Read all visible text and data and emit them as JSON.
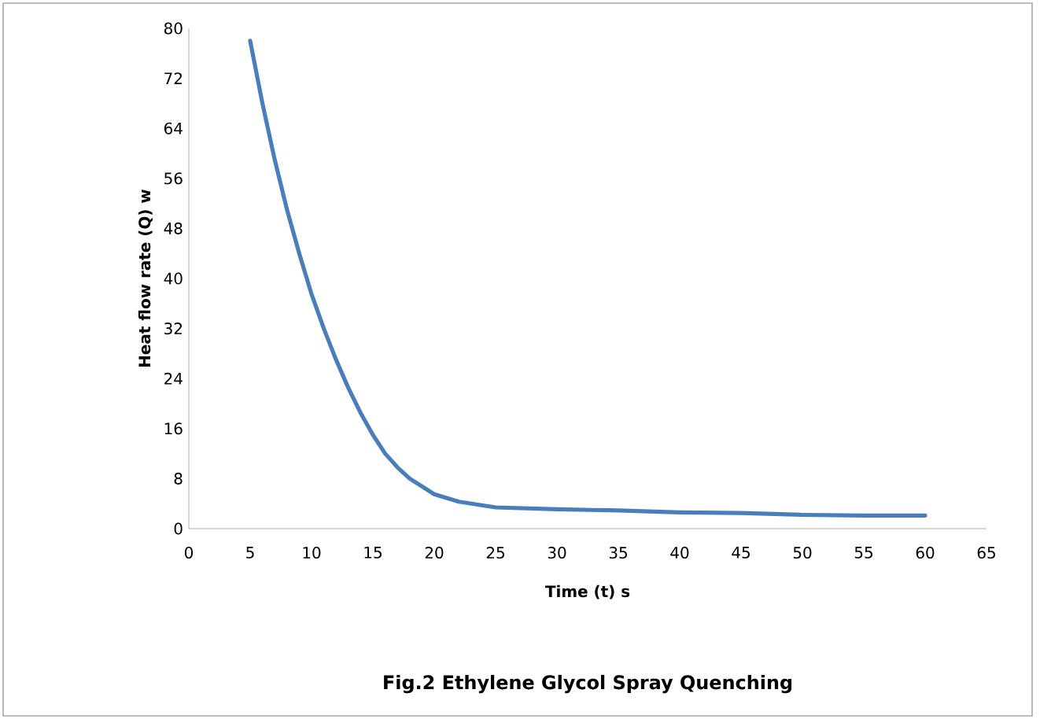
{
  "chart_data": {
    "type": "line",
    "title": "Fig.2  Ethylene Glycol Spray Quenching",
    "xlabel": "Time (t) s",
    "ylabel": "Heat flow rate (Q) w",
    "x": [
      5,
      6,
      7,
      8,
      9,
      10,
      11,
      12,
      13,
      14,
      15,
      16,
      17,
      18,
      20,
      22,
      25,
      30,
      35,
      40,
      45,
      50,
      55,
      60
    ],
    "series": [
      {
        "color": "#4a7ebb",
        "values": [
          78,
          68,
          59,
          51,
          44,
          37.5,
          32,
          27,
          22.5,
          18.5,
          15,
          12,
          9.8,
          8,
          5.5,
          4.3,
          3.4,
          3.1,
          2.9,
          2.6,
          2.5,
          2.2,
          2.1,
          2.1
        ]
      }
    ],
    "xlim": [
      0,
      65
    ],
    "xticks": [
      0,
      5,
      10,
      15,
      20,
      25,
      30,
      35,
      40,
      45,
      50,
      55,
      60,
      65
    ],
    "ylim": [
      0,
      80
    ],
    "yticks": [
      0,
      8,
      16,
      24,
      32,
      40,
      48,
      56,
      64,
      72,
      80
    ],
    "grid": false,
    "marker": "none",
    "line_style": "solid"
  }
}
